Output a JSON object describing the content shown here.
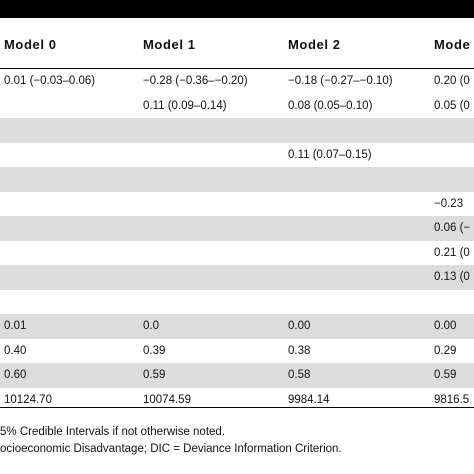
{
  "headers": [
    "Model 0",
    "Model 1",
    "Model 2",
    "Mode"
  ],
  "rows": [
    {
      "cells": [
        "0.01 (−0.03–0.06)",
        "−0.28 (−0.36–−0.20)",
        "−0.18 (−0.27–−0.10)",
        "0.20 (0"
      ],
      "shade": false
    },
    {
      "cells": [
        "",
        "0.11 (0.09–0.14)",
        "0.08 (0.05–0.10)",
        "0.05 (0"
      ],
      "shade": false
    },
    {
      "cells": [
        "",
        "",
        "",
        ""
      ],
      "shade": true
    },
    {
      "cells": [
        "",
        "",
        "0.11 (0.07–0.15)",
        ""
      ],
      "shade": false
    },
    {
      "cells": [
        "",
        "",
        "",
        ""
      ],
      "shade": true
    },
    {
      "cells": [
        "",
        "",
        "",
        "−0.23"
      ],
      "shade": false
    },
    {
      "cells": [
        "",
        "",
        "",
        "0.06 (−"
      ],
      "shade": true
    },
    {
      "cells": [
        "",
        "",
        "",
        "0.21 (0"
      ],
      "shade": false
    },
    {
      "cells": [
        "",
        "",
        "",
        "0.13 (0"
      ],
      "shade": true
    },
    {
      "cells": [
        "",
        "",
        "",
        ""
      ],
      "shade": false
    },
    {
      "cells": [
        "0.01",
        "0.0",
        "0.00",
        "0.00"
      ],
      "shade": true
    },
    {
      "cells": [
        "0.40",
        "0.39",
        "0.38",
        "0.29"
      ],
      "shade": false
    },
    {
      "cells": [
        "0.60",
        "0.59",
        "0.58",
        "0.59"
      ],
      "shade": true
    },
    {
      "cells": [
        "10124.70",
        "10074.59",
        "9984.14",
        "9816.5"
      ],
      "shade": false
    }
  ],
  "footnotes": [
    "5% Credible Intervals if not otherwise noted.",
    "ocioeconomic Disadvantage; DIC = Deviance Information Criterion."
  ]
}
